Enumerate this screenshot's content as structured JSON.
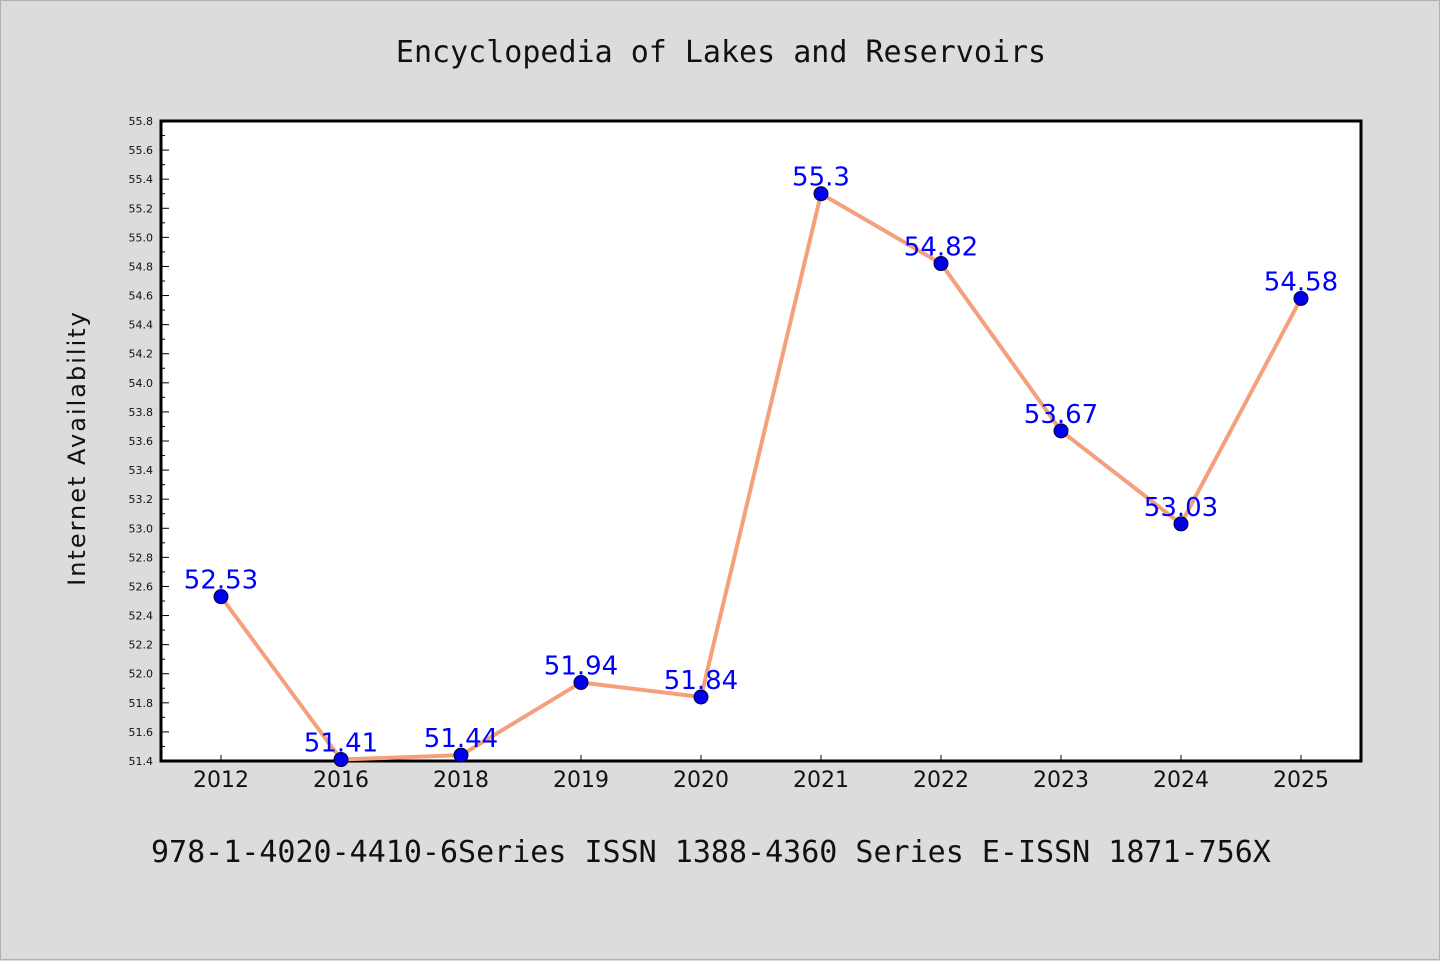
{
  "chart_data": {
    "type": "line",
    "title": "Encyclopedia of Lakes and Reservoirs",
    "ylabel": "Internet Availability",
    "xlabel": "",
    "footer": "978-1-4020-4410-6Series ISSN 1388-4360 Series E-ISSN 1871-756X",
    "categories": [
      "2012",
      "2016",
      "2018",
      "2019",
      "2020",
      "2021",
      "2022",
      "2023",
      "2024",
      "2025"
    ],
    "values": [
      52.53,
      51.41,
      51.44,
      51.94,
      51.84,
      55.3,
      54.82,
      53.67,
      53.03,
      54.58
    ],
    "data_labels": [
      "52.53",
      "51.41",
      "51.44",
      "51.94",
      "51.84",
      "55.3",
      "54.82",
      "53.67",
      "53.03",
      "54.58"
    ],
    "ylim": [
      51.4,
      55.8
    ],
    "y_ticks": [
      "51.4",
      "51.6",
      "51.8",
      "52.0",
      "52.2",
      "52.4",
      "52.6",
      "52.8",
      "53.0",
      "53.2",
      "53.4",
      "53.6",
      "53.8",
      "54.0",
      "54.2",
      "54.4",
      "54.6",
      "54.8",
      "55.0",
      "55.2",
      "55.4",
      "55.6",
      "55.8"
    ],
    "grid": false,
    "colors": {
      "line": "#f4a07c",
      "marker": "#0000ee",
      "label": "#0000ff",
      "plot_background": "#ffffff",
      "figure_background": "#dcdcdc"
    }
  }
}
